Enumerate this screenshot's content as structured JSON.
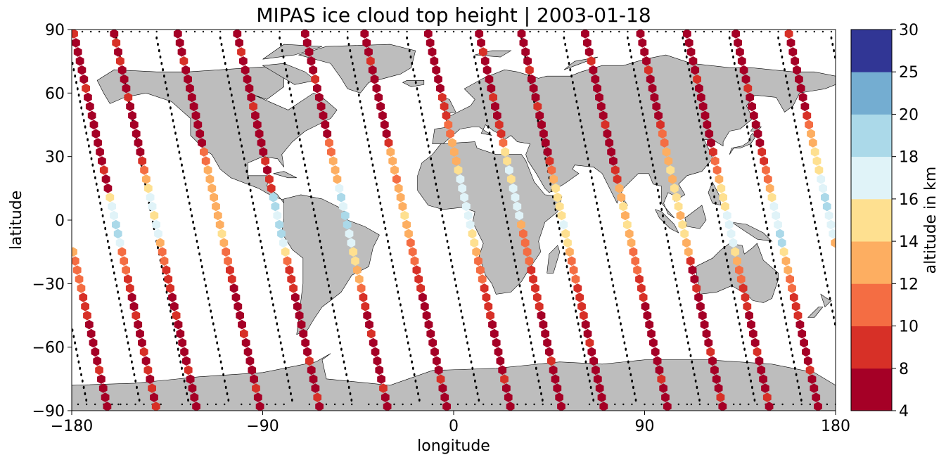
{
  "chart_data": {
    "type": "scatter",
    "title": "MIPAS ice cloud top height | 2003-01-18",
    "xlabel": "longitude",
    "ylabel": "latitude",
    "xlim": [
      -180,
      180
    ],
    "ylim": [
      -90,
      90
    ],
    "x_ticks": [
      -180,
      -90,
      0,
      90,
      180
    ],
    "y_ticks": [
      -90,
      -60,
      -30,
      0,
      30,
      60,
      90
    ],
    "x_tick_labels": [
      "−180",
      "−90",
      "0",
      "90",
      "180"
    ],
    "y_tick_labels": [
      "−90",
      "−60",
      "−30",
      "0",
      "30",
      "60",
      "90"
    ],
    "grid": false,
    "colorbar": {
      "label": "altitude in km",
      "boundaries": [
        4,
        8,
        10,
        12,
        14,
        16,
        18,
        20,
        25,
        30
      ],
      "tick_labels": [
        "4",
        "8",
        "10",
        "12",
        "14",
        "16",
        "18",
        "20",
        "25",
        "30"
      ],
      "colors": [
        "#a50026",
        "#d73027",
        "#f46d43",
        "#fdae61",
        "#fee090",
        "#e0f3f8",
        "#abd9e9",
        "#74add1",
        "#313695"
      ]
    },
    "colors": {
      "land": "#bdbdbd",
      "coast": "#000000",
      "track": "#000000"
    },
    "tracks": [
      {
        "start_lon": -179,
        "lat_north": 88,
        "slope_lon_per_deg": 0.22,
        "values": [
          9,
          7,
          7,
          6,
          6,
          7,
          8,
          7,
          6,
          7,
          6,
          6,
          6,
          7,
          6,
          8,
          6,
          6,
          15,
          17,
          17,
          19,
          18,
          16,
          11,
          11,
          10,
          8,
          8,
          7,
          7,
          8,
          6,
          7,
          7,
          9,
          7,
          8,
          7,
          8,
          6,
          8
        ]
      },
      {
        "start_lon": -160,
        "lat_north": 88,
        "slope_lon_per_deg": 0.22,
        "values": [
          7,
          8,
          7,
          8,
          7,
          7,
          6,
          8,
          6,
          6,
          7,
          6,
          7,
          6,
          8,
          11,
          13,
          15,
          16,
          16,
          15,
          17,
          17,
          13,
          10,
          11,
          8,
          9,
          9,
          7,
          7,
          8,
          7,
          6,
          7,
          7,
          7,
          8,
          6,
          7,
          7,
          6
        ]
      },
      {
        "start_lon": -130,
        "lat_north": 88,
        "slope_lon_per_deg": 0.22,
        "values": [
          6,
          7,
          7,
          8,
          7,
          6,
          6,
          7,
          7,
          7,
          6,
          6,
          6,
          10,
          11,
          12,
          13,
          13,
          12,
          13,
          12,
          13,
          14,
          13,
          10,
          11,
          9,
          8,
          7,
          7,
          7,
          6,
          6,
          8,
          6,
          7,
          6,
          7,
          7,
          8,
          7,
          6
        ]
      },
      {
        "start_lon": -102,
        "lat_north": 88,
        "slope_lon_per_deg": 0.22,
        "values": [
          7,
          6,
          8,
          7,
          6,
          7,
          6,
          6,
          8,
          7,
          6,
          7,
          6,
          7,
          8,
          7,
          8,
          9,
          18,
          18,
          17,
          18,
          19,
          17,
          14,
          10,
          9,
          9,
          8,
          7,
          7,
          7,
          7,
          6,
          6,
          7,
          8,
          7,
          6,
          7,
          8,
          7
        ]
      },
      {
        "start_lon": -70,
        "lat_north": 88,
        "slope_lon_per_deg": 0.22,
        "values": [
          6,
          6,
          7,
          7,
          7,
          8,
          7,
          6,
          7,
          6,
          7,
          6,
          10,
          11,
          12,
          12,
          13,
          16,
          18,
          17,
          19,
          19,
          17,
          16,
          15,
          14,
          13,
          12,
          11,
          9,
          9,
          7,
          7,
          8,
          6,
          6,
          7,
          6,
          7,
          8,
          7,
          6
        ]
      },
      {
        "start_lon": -42,
        "lat_north": 88,
        "slope_lon_per_deg": 0.22,
        "values": [
          7,
          6,
          7,
          8,
          7,
          6,
          7,
          6,
          7,
          6,
          7,
          6,
          9,
          12,
          12,
          13,
          11,
          12,
          13,
          12,
          14,
          13,
          12,
          11,
          11,
          10,
          9,
          9,
          8,
          7,
          7,
          6,
          7,
          6,
          7,
          6,
          7,
          6,
          8,
          7,
          6,
          7
        ]
      },
      {
        "start_lon": -12,
        "lat_north": 88,
        "slope_lon_per_deg": 0.22,
        "values": [
          6,
          6,
          7,
          7,
          6,
          7,
          6,
          8,
          9,
          8,
          11,
          11,
          12,
          12,
          13,
          15,
          16,
          16,
          17,
          16,
          17,
          16,
          15,
          14,
          12,
          11,
          10,
          10,
          9,
          9,
          8,
          8,
          7,
          7,
          6,
          7,
          6,
          7,
          8,
          6,
          7,
          6
        ]
      },
      {
        "start_lon": 12,
        "lat_north": 88,
        "slope_lon_per_deg": 0.22,
        "values": [
          6,
          7,
          8,
          7,
          6,
          7,
          6,
          8,
          7,
          6,
          8,
          9,
          10,
          15,
          15,
          16,
          15,
          17,
          17,
          16,
          17,
          13,
          11,
          10,
          11,
          10,
          9,
          9,
          8,
          8,
          8,
          7,
          7,
          6,
          7,
          6,
          8,
          7,
          6,
          7,
          6,
          7
        ]
      },
      {
        "start_lon": 32,
        "lat_north": 88,
        "slope_lon_per_deg": 0.22,
        "values": [
          7,
          6,
          7,
          6,
          8,
          7,
          6,
          7,
          8,
          7,
          6,
          7,
          6,
          6,
          8,
          11,
          12,
          14,
          15,
          15,
          14,
          16,
          14,
          15,
          12,
          11,
          10,
          10,
          9,
          9,
          8,
          8,
          7,
          7,
          8,
          7,
          6,
          7,
          7,
          6,
          7,
          6
        ]
      },
      {
        "start_lon": 62,
        "lat_north": 88,
        "slope_lon_per_deg": 0.22,
        "values": [
          7,
          6,
          7,
          8,
          7,
          6,
          7,
          6,
          7,
          6,
          8,
          6,
          7,
          6,
          7,
          8,
          9,
          12,
          12,
          14,
          13,
          14,
          12,
          12,
          11,
          10,
          11,
          9,
          9,
          8,
          7,
          7,
          6,
          7,
          6,
          7,
          6,
          7,
          8,
          6,
          7,
          6
        ]
      },
      {
        "start_lon": 88,
        "lat_north": 88,
        "slope_lon_per_deg": 0.22,
        "values": [
          6,
          7,
          6,
          7,
          8,
          7,
          6,
          7,
          6,
          6,
          9,
          11,
          11,
          12,
          13,
          14,
          13,
          15,
          14,
          15,
          13,
          14,
          14,
          13,
          12,
          8,
          7,
          7,
          8,
          6,
          7,
          7,
          6,
          6,
          7,
          8,
          7,
          6,
          7,
          6,
          8,
          7
        ]
      },
      {
        "start_lon": 110,
        "lat_north": 88,
        "slope_lon_per_deg": 0.22,
        "values": [
          7,
          6,
          7,
          6,
          7,
          8,
          7,
          6,
          7,
          6,
          7,
          6,
          7,
          9,
          10,
          10,
          13,
          14,
          15,
          15,
          16,
          17,
          17,
          17,
          14,
          12,
          11,
          10,
          9,
          8,
          9,
          7,
          7,
          6,
          7,
          8,
          6,
          7,
          6,
          7,
          8,
          6
        ]
      },
      {
        "start_lon": 133,
        "lat_north": 88,
        "slope_lon_per_deg": 0.22,
        "values": [
          6,
          7,
          6,
          7,
          6,
          7,
          8,
          7,
          6,
          7,
          6,
          7,
          7,
          8,
          9,
          10,
          11,
          13,
          15,
          16,
          17,
          17,
          18,
          19,
          14,
          13,
          12,
          11,
          10,
          9,
          8,
          8,
          7,
          7,
          6,
          6,
          7,
          8,
          7,
          7,
          6,
          7
        ]
      },
      {
        "start_lon": 158,
        "lat_north": 88,
        "slope_lon_per_deg": 0.22,
        "values": [
          8,
          7,
          7,
          6,
          7,
          6,
          6,
          7,
          6,
          8,
          10,
          12,
          13,
          15,
          14,
          15,
          16,
          16,
          18,
          18,
          17,
          17,
          16,
          13,
          12,
          11,
          11,
          10,
          10,
          9,
          8,
          8,
          7,
          7,
          6,
          7,
          6,
          8,
          7,
          6,
          7,
          6
        ]
      }
    ]
  }
}
